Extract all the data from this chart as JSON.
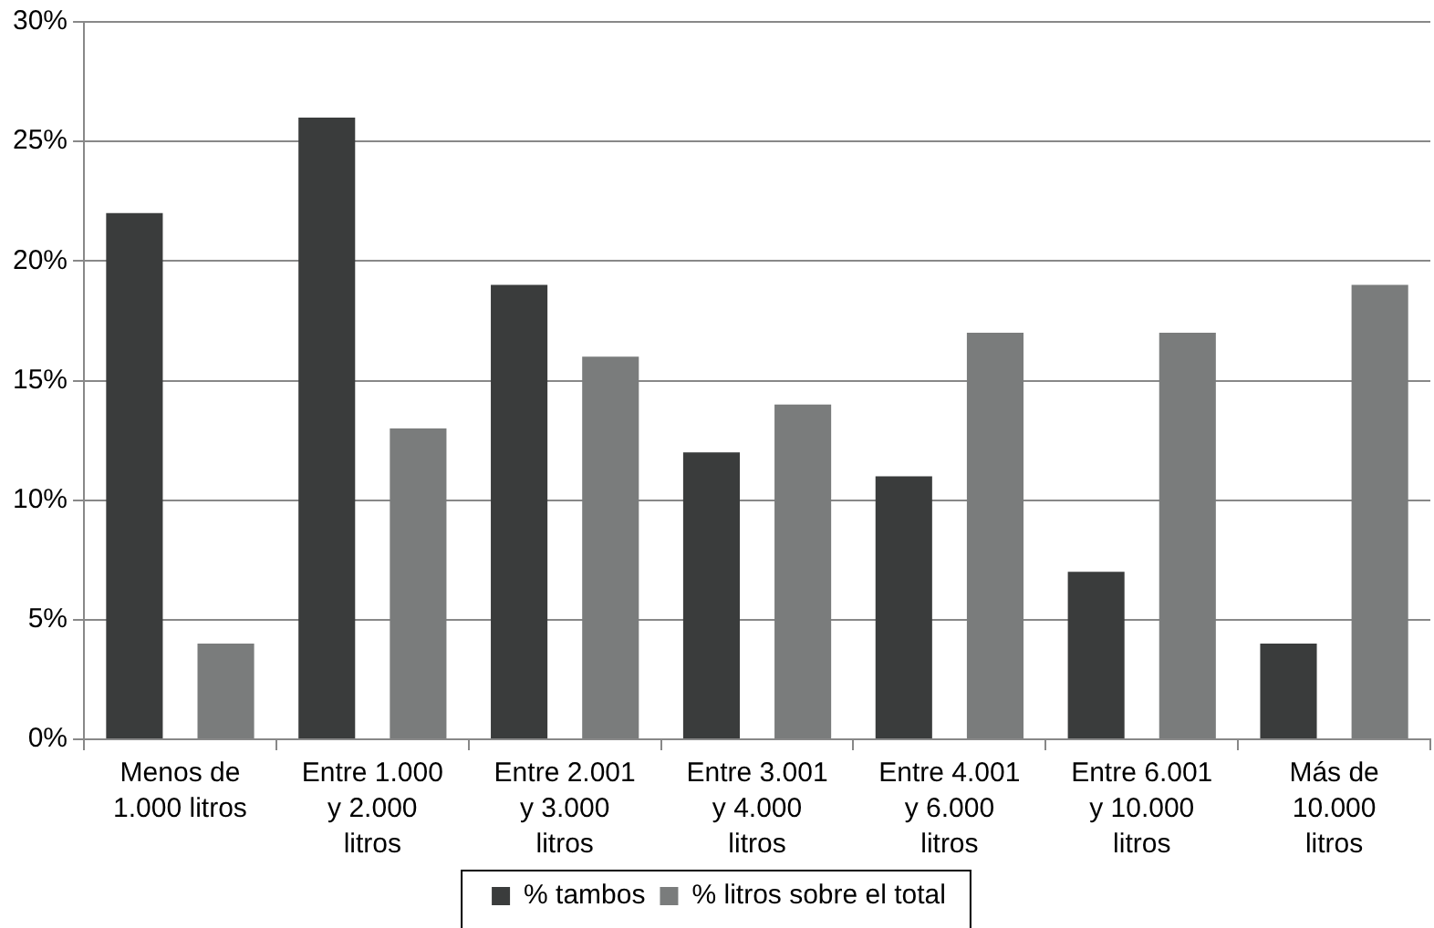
{
  "chart_data": {
    "type": "bar",
    "categories": [
      "Menos de 1.000 litros",
      "Entre 1.000 y 2.000 litros",
      "Entre 2.001 y 3.000 litros",
      "Entre 3.001 y 4.000 litros",
      "Entre 4.001 y 6.000 litros",
      "Entre 6.001 y 10.000 litros",
      "Más de 10.000 litros"
    ],
    "series": [
      {
        "name": "% tambos",
        "color": "#3a3c3c",
        "values": [
          22,
          26,
          19,
          12,
          11,
          7,
          4
        ]
      },
      {
        "name": "% litros sobre el total",
        "color": "#7a7c7c",
        "values": [
          4,
          13,
          16,
          14,
          17,
          17,
          19
        ]
      }
    ],
    "ylim": [
      0,
      30
    ],
    "yticks": [
      {
        "value": 0,
        "label": "0%"
      },
      {
        "value": 5,
        "label": "5%"
      },
      {
        "value": 10,
        "label": "10%"
      },
      {
        "value": 15,
        "label": "15%"
      },
      {
        "value": 20,
        "label": "20%"
      },
      {
        "value": 25,
        "label": "25%"
      },
      {
        "value": 30,
        "label": "30%"
      }
    ],
    "grid": "y",
    "legend": "bottom"
  }
}
